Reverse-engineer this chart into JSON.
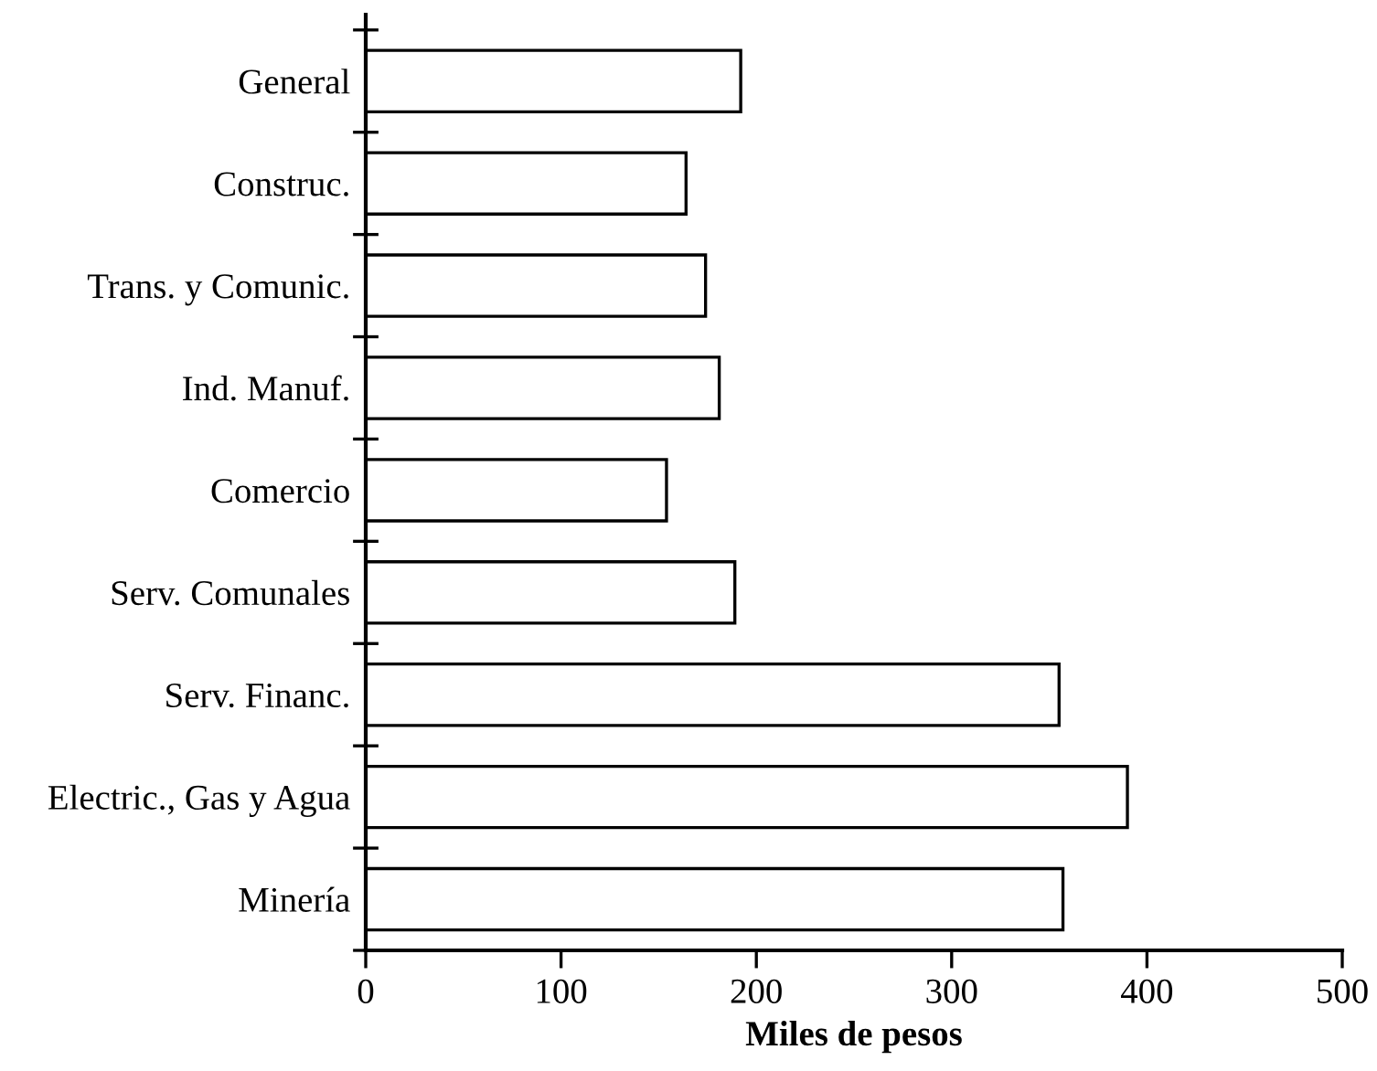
{
  "chart_data": {
    "type": "bar",
    "orientation": "horizontal",
    "xlabel": "Miles de pesos",
    "categories": [
      "General",
      "Construc.",
      "Trans. y Comunic.",
      "Ind. Manuf.",
      "Comercio",
      "Serv. Comunales",
      "Serv. Financ.",
      "Electric., Gas y Agua",
      "Minería"
    ],
    "values": [
      192,
      164,
      174,
      181,
      154,
      189,
      355,
      390,
      357
    ],
    "color": "#ffffff",
    "xlim": [
      0,
      500
    ],
    "xticks": [
      0,
      100,
      200,
      300,
      400,
      500
    ],
    "grid": false,
    "legend": false
  }
}
